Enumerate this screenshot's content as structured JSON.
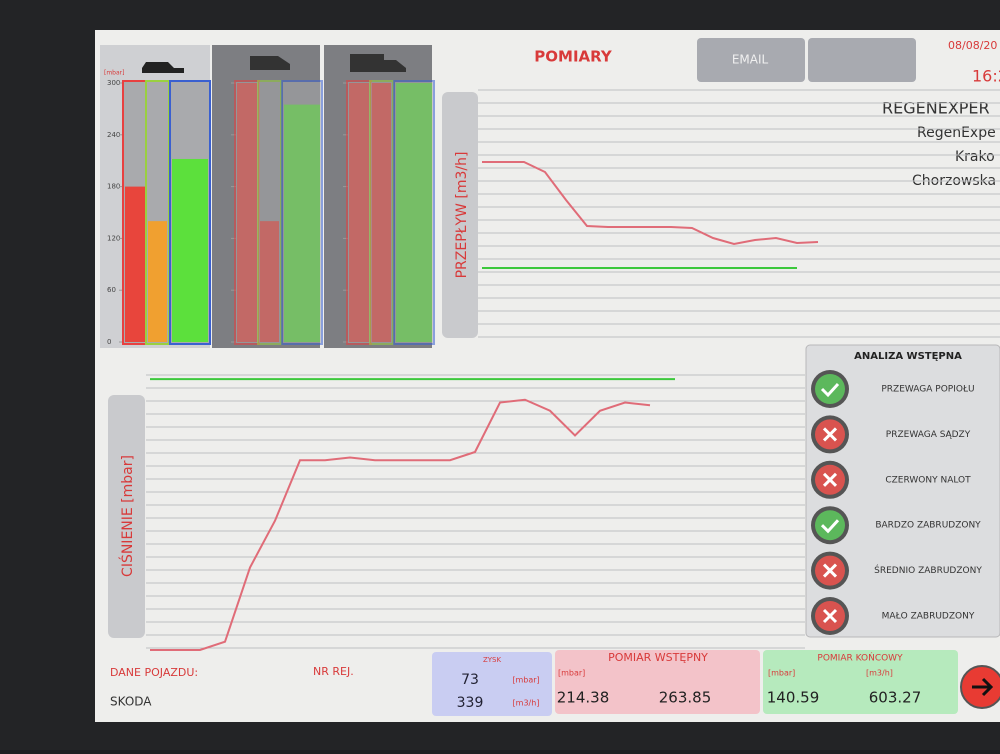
{
  "header": {
    "title": "POMIARY",
    "email_button": "EMAIL",
    "date": "08/08/20",
    "time": "16:2",
    "company": [
      "REGENEXPER",
      "RegenExpe",
      "Krako",
      "Chorzowska"
    ]
  },
  "gauges": {
    "unit_label": "[mbar]",
    "ylim": [
      0,
      300
    ],
    "yticks": [
      300,
      240,
      180,
      120,
      60,
      0
    ],
    "panels": [
      {
        "bars": [
          {
            "color": "#e8453c",
            "value": 180
          },
          {
            "color": "#f0a030",
            "value": 140
          },
          {
            "color": "#5ce03c",
            "value": 212
          }
        ]
      },
      {
        "bars": [
          {
            "color": "#e8453c",
            "value": 300
          },
          {
            "color": "#e8453c",
            "value": 140
          },
          {
            "color": "#5ce03c",
            "value": 275
          }
        ]
      },
      {
        "bars": [
          {
            "color": "#e8453c",
            "value": 300
          },
          {
            "color": "#e8453c",
            "value": 300
          },
          {
            "color": "#5ce03c",
            "value": 300
          }
        ]
      }
    ]
  },
  "flow_chart": {
    "type": "line",
    "y_label": "PRZEPŁYW [m3/h]",
    "ylim": [
      0,
      100
    ],
    "series": [
      {
        "color": "#e06c78",
        "values": [
          71.2,
          71.2,
          71.2,
          67.2,
          56,
          45.6,
          45.2,
          45.2,
          45.2,
          45.2,
          44.8,
          40.8,
          38.4,
          40,
          40.8,
          38.8,
          39.2
        ]
      },
      {
        "color": "#3cc83c",
        "values": [
          28.8,
          28.8,
          28.8,
          28.8,
          28.8,
          28.8,
          28.8,
          28.8,
          28.8,
          28.8,
          28.8,
          28.8,
          28.8,
          28.8,
          28.8,
          28.8,
          null
        ]
      }
    ]
  },
  "pressure_chart": {
    "type": "line",
    "y_label": "CIŚNIENIE [mbar]",
    "ylim": [
      0,
      100
    ],
    "series": [
      {
        "color": "#e06c78",
        "values": [
          0,
          0,
          0,
          3,
          30,
          47,
          69,
          69,
          70,
          69,
          69,
          69,
          69,
          72,
          90,
          91,
          87,
          78,
          87,
          90,
          89
        ]
      },
      {
        "color": "#3cc83c",
        "values": [
          98.5,
          98.5,
          98.5,
          98.5,
          98.5,
          98.5,
          98.5,
          98.5,
          98.5,
          98.5,
          98.5,
          98.5,
          98.5,
          98.5,
          98.5,
          98.5,
          98.5,
          98.5,
          98.5,
          98.5,
          98.5,
          98.5
        ]
      }
    ]
  },
  "analysis": {
    "title": "ANALIZA WSTĘPNA",
    "items": [
      {
        "label": "PRZEWAGA POPIOŁU",
        "status": "ok"
      },
      {
        "label": "PRZEWAGA SĄDZY",
        "status": "fail"
      },
      {
        "label": "CZERWONY NALOT",
        "status": "fail"
      },
      {
        "label": "BARDZO ZABRUDZONY",
        "status": "ok"
      },
      {
        "label": "ŚREDNIO ZABRUDZONY",
        "status": "fail"
      },
      {
        "label": "MAŁO ZABRUDZONY",
        "status": "fail"
      }
    ]
  },
  "vehicle": {
    "label": "DANE POJAZDU:",
    "make": "SKODA",
    "reg_label": "NR REJ."
  },
  "gain": {
    "title": "ZYSK",
    "pressure": 73,
    "pressure_unit": "[mbar]",
    "flow": 339,
    "flow_unit": "[m3/h]"
  },
  "initial": {
    "title": "POMIAR WSTĘPNY",
    "unit": "[mbar]",
    "pressure": 214.38,
    "flow": 263.85
  },
  "final": {
    "title": "POMIAR KOŃCOWY",
    "pressure_unit": "[mbar]",
    "flow_unit": "[m3/h]",
    "pressure": 140.59,
    "flow": 603.27
  }
}
